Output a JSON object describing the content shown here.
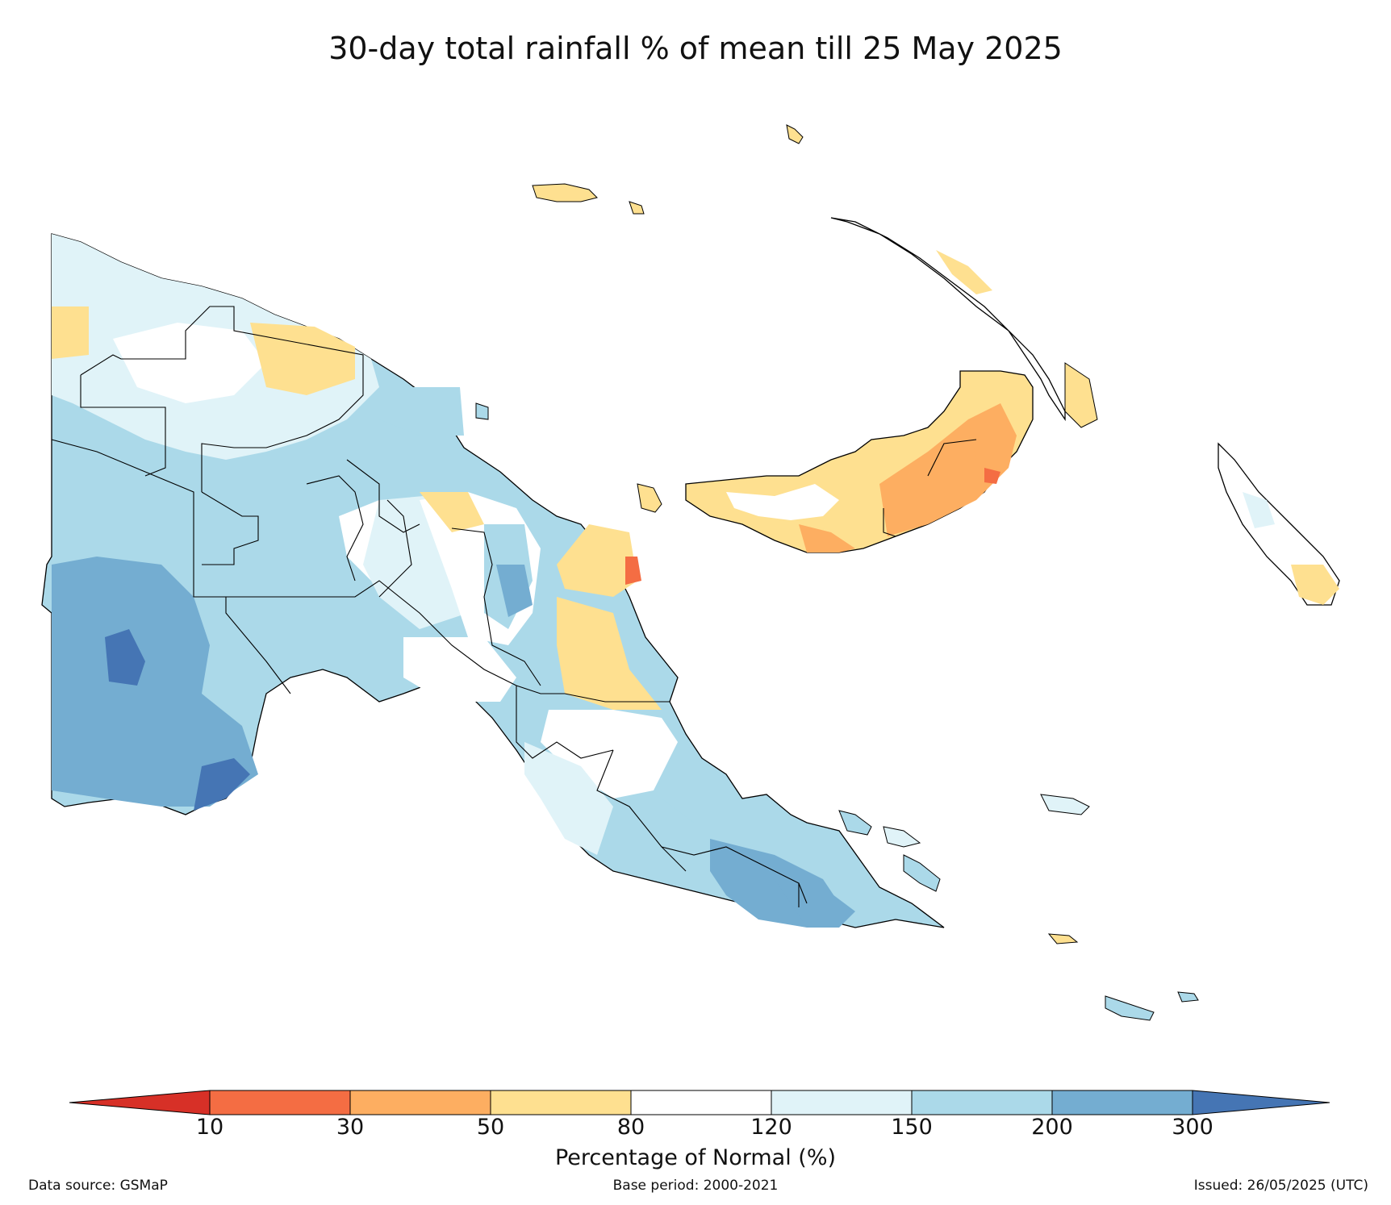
{
  "title": "30-day total rainfall % of mean till 25 May 2025",
  "colorbar": {
    "label": "Percentage of Normal (%)",
    "ticks": [
      "10",
      "30",
      "50",
      "80",
      "120",
      "150",
      "200",
      "300"
    ],
    "colors": [
      "#d73027",
      "#f46d43",
      "#fdae61",
      "#fee090",
      "#ffffff",
      "#e0f3f8",
      "#abd9e9",
      "#74add1",
      "#4575b4"
    ]
  },
  "footer": {
    "source": "Data source: GSMaP",
    "base_period": "Base period: 2000-2021",
    "issued": "Issued: 26/05/2025 (UTC)"
  }
}
